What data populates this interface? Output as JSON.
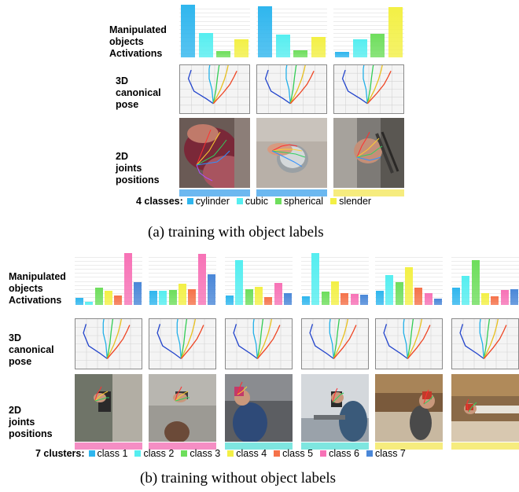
{
  "panel_a": {
    "rows": {
      "activations": "Manipulated\nobjects\nActivations",
      "pose": "3D\ncanonical\npose",
      "joints": "2D\njoints\npositions"
    },
    "legend_label": "4 classes:",
    "classes": [
      {
        "name": "cylinder",
        "color": "#2fb6ee"
      },
      {
        "name": "cubic",
        "color": "#55eef0"
      },
      {
        "name": "spherical",
        "color": "#6ede5c"
      },
      {
        "name": "slender",
        "color": "#f3f045"
      }
    ],
    "samples": [
      {
        "activations": [
          1.0,
          0.46,
          0.12,
          0.35
        ],
        "class_color": "#6cb8f0"
      },
      {
        "activations": [
          0.97,
          0.43,
          0.14,
          0.39
        ],
        "class_color": "#6cb8f0"
      },
      {
        "activations": [
          0.11,
          0.34,
          0.45,
          0.96
        ],
        "class_color": "#f6ec7e"
      }
    ],
    "caption": "(a) training with object labels"
  },
  "panel_b": {
    "rows": {
      "activations": "Manipulated\nobjects\nActivations",
      "pose": "3D\ncanonical\npose",
      "joints": "2D\njoints\npositions"
    },
    "legend_label": "7 clusters:",
    "classes": [
      {
        "name": "class 1",
        "color": "#2fb6ee"
      },
      {
        "name": "class 2",
        "color": "#55eef0"
      },
      {
        "name": "class 3",
        "color": "#6ede5c"
      },
      {
        "name": "class 4",
        "color": "#f3f045"
      },
      {
        "name": "class 5",
        "color": "#f5724a"
      },
      {
        "name": "class 6",
        "color": "#f772b6"
      },
      {
        "name": "class 7",
        "color": "#4a87d8"
      }
    ],
    "samples": [
      {
        "activations": [
          0.14,
          0.06,
          0.34,
          0.27,
          0.18,
          1.0,
          0.44
        ],
        "class_color": "#f58ec4"
      },
      {
        "activations": [
          0.27,
          0.27,
          0.29,
          0.41,
          0.31,
          0.98,
          0.59
        ],
        "class_color": "#f58ec4"
      },
      {
        "activations": [
          0.18,
          0.86,
          0.31,
          0.35,
          0.15,
          0.42,
          0.22
        ],
        "class_color": "#7ee6e0"
      },
      {
        "activations": [
          0.16,
          1.0,
          0.26,
          0.45,
          0.23,
          0.21,
          0.19
        ],
        "class_color": "#7ee6e0"
      },
      {
        "activations": [
          0.27,
          0.58,
          0.44,
          0.72,
          0.33,
          0.23,
          0.12
        ],
        "class_color": "#f6ec7e"
      },
      {
        "activations": [
          0.33,
          0.56,
          0.86,
          0.22,
          0.17,
          0.29,
          0.31
        ],
        "class_color": "#f6ec7e"
      }
    ],
    "caption": "(b) training without object labels"
  }
}
